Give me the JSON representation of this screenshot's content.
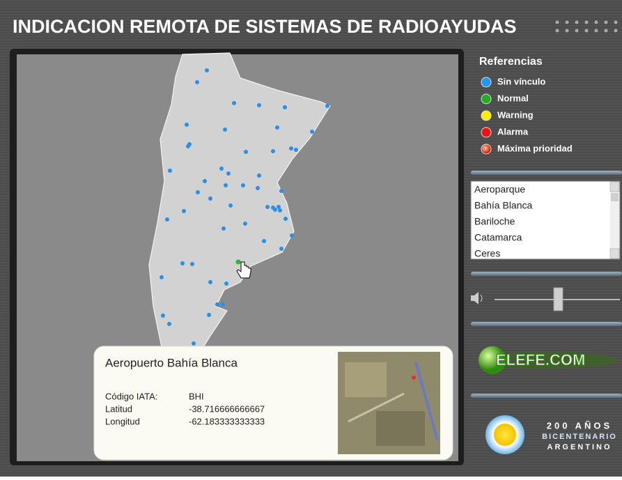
{
  "header": {
    "title": "INDICACION REMOTA DE SISTEMAS DE RADIOAYUDAS"
  },
  "legend": {
    "title": "Referencias",
    "items": [
      "Sin vínculo",
      "Normal",
      "Warning",
      "Alarma",
      "Máxima prioridad"
    ]
  },
  "list": {
    "items": [
      "Aeroparque",
      "Bahía Blanca",
      "Bariloche",
      "Catamarca",
      "Ceres"
    ]
  },
  "popup": {
    "title": "Aeropuerto Bahía Blanca",
    "rows": [
      [
        "Código IATA:",
        "BHI"
      ],
      [
        "Latitud",
        "-38.716666666667"
      ],
      [
        "Longitud",
        "-62.183333333333"
      ]
    ]
  },
  "logo": {
    "text": "ELEFE.COM"
  },
  "bicentenario": {
    "lines": [
      "200 AÑOS",
      "BICENTENARIO",
      "ARGENTINO"
    ]
  }
}
